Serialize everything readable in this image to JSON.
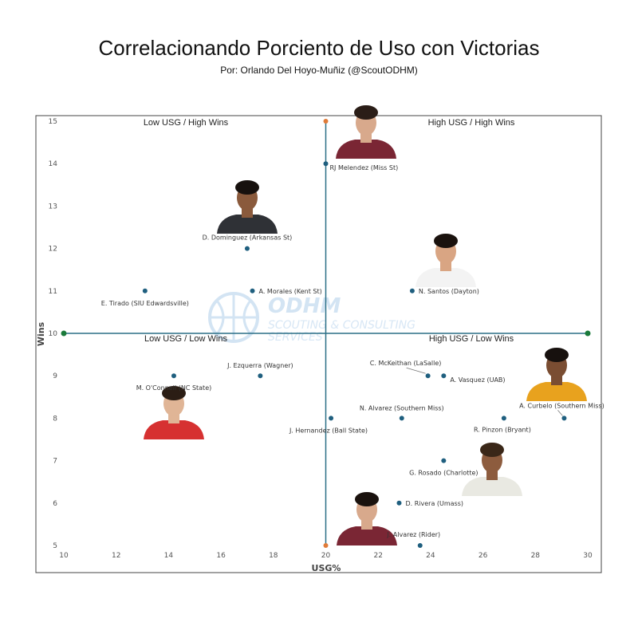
{
  "chart_data": {
    "type": "scatter",
    "title": "Correlacionando Porciento de Uso con Victorias",
    "subtitle": "Por: Orlando Del Hoyo-Muñiz (@ScoutODHM)",
    "xlabel": "USG%",
    "ylabel": "Wins",
    "xlim": [
      10,
      30
    ],
    "ylim": [
      5,
      15
    ],
    "xticks": [
      "10",
      "12",
      "14",
      "16",
      "18",
      "20",
      "22",
      "24",
      "26",
      "28",
      "30"
    ],
    "yticks": [
      "5",
      "6",
      "7",
      "8",
      "9",
      "10",
      "11",
      "12",
      "13",
      "14",
      "15"
    ],
    "grid": false,
    "reference_lines": {
      "x": 20,
      "y": 10
    },
    "quadrant_labels": {
      "top_left": "Low USG / High Wins",
      "top_right": "High USG / High Wins",
      "bottom_left": "Low USG / Low Wins",
      "bottom_right": "High USG / Low Wins"
    },
    "points": [
      {
        "label": "RJ Melendez (Miss St)",
        "x": 20.0,
        "y": 14
      },
      {
        "label": "D. Dominguez (Arkansas St)",
        "x": 17.0,
        "y": 12
      },
      {
        "label": "E. Tirado (SIU Edwardsville)",
        "x": 13.1,
        "y": 11
      },
      {
        "label": "A. Morales (Kent St)",
        "x": 17.2,
        "y": 11
      },
      {
        "label": "N. Santos (Dayton)",
        "x": 23.3,
        "y": 11
      },
      {
        "label": "M. O'Connell (NC State)",
        "x": 14.2,
        "y": 9
      },
      {
        "label": "J. Ezquerra (Wagner)",
        "x": 17.5,
        "y": 9
      },
      {
        "label": "C. McKeithan (LaSalle)",
        "x": 23.9,
        "y": 9
      },
      {
        "label": "A. Vasquez (UAB)",
        "x": 24.5,
        "y": 9
      },
      {
        "label": "J. Hernandez (Ball State)",
        "x": 20.2,
        "y": 8
      },
      {
        "label": "N. Alvarez (Southern Miss)",
        "x": 22.9,
        "y": 8
      },
      {
        "label": "R. Pinzon (Bryant)",
        "x": 26.8,
        "y": 8
      },
      {
        "label": "A. Curbelo (Southern Miss)",
        "x": 29.1,
        "y": 8
      },
      {
        "label": "G. Rosado (Charlotte)",
        "x": 24.5,
        "y": 7
      },
      {
        "label": "D. Rivera (Umass)",
        "x": 22.8,
        "y": 6
      },
      {
        "label": "J. Alvarez (Rider)",
        "x": 23.6,
        "y": 5
      }
    ],
    "colors": {
      "point": "#1f5f7f",
      "reference_line": "#2a6f86",
      "axis_marker": "#e07b39",
      "axis_end": "#1a7a3a"
    }
  },
  "watermark": {
    "title": "ODHM",
    "subtitle": "SCOUTING & CONSULTING SERVICES"
  }
}
